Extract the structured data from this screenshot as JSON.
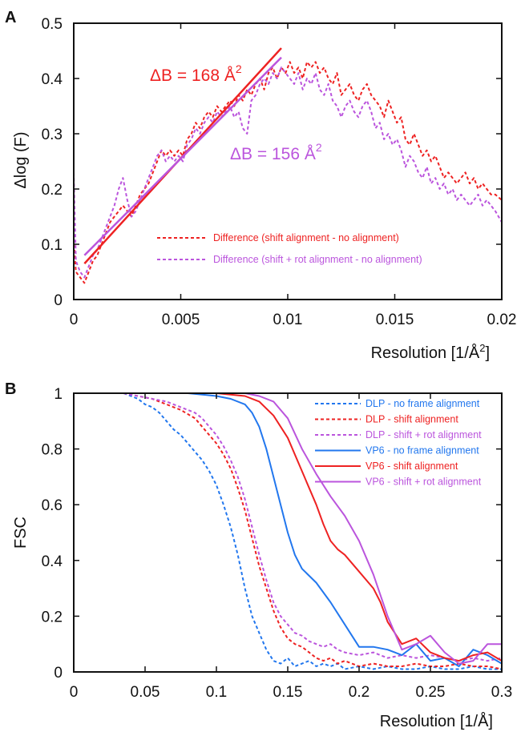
{
  "colors": {
    "red": "#ee2222",
    "purple": "#bb55dd",
    "blue": "#2277ee",
    "axis": "#111111"
  },
  "chart_data": [
    {
      "panel": "A",
      "type": "line",
      "xlabel_main": "Resolution [1/Å",
      "xlabel_sup": "2",
      "xlabel_end": "]",
      "ylabel": "Δlog (F)",
      "xlim": [
        0,
        0.02
      ],
      "ylim": [
        0,
        0.5
      ],
      "xticks": [
        0,
        0.005,
        0.01,
        0.015,
        0.02
      ],
      "xtick_labels": [
        "0",
        "0.005",
        "0.01",
        "0.015",
        "0.02"
      ],
      "yticks": [
        0,
        0.1,
        0.2,
        0.3,
        0.4,
        0.5
      ],
      "ytick_labels": [
        "0",
        "0.1",
        "0.2",
        "0.3",
        "0.4",
        "0.5"
      ],
      "legend_position": "bottom-right",
      "series": [
        {
          "name": "Difference (shift alignment - no alignment)",
          "color_key": "red",
          "dashed": true,
          "x": [
            0,
            0.0001,
            0.0003,
            0.0005,
            0.0007,
            0.0009,
            0.0011,
            0.0013,
            0.0015,
            0.0017,
            0.0019,
            0.0021,
            0.0023,
            0.0025,
            0.0027,
            0.0029,
            0.0031,
            0.0033,
            0.0035,
            0.0037,
            0.0039,
            0.0041,
            0.0043,
            0.0045,
            0.0047,
            0.0049,
            0.0051,
            0.0053,
            0.0055,
            0.0057,
            0.0059,
            0.0061,
            0.0063,
            0.0065,
            0.0067,
            0.0069,
            0.0071,
            0.0073,
            0.0075,
            0.0077,
            0.0079,
            0.0081,
            0.0083,
            0.0085,
            0.0087,
            0.0089,
            0.0091,
            0.0093,
            0.0095,
            0.0097,
            0.0099,
            0.0101,
            0.0103,
            0.0105,
            0.0107,
            0.0109,
            0.0111,
            0.0113,
            0.0115,
            0.0117,
            0.0119,
            0.0121,
            0.0123,
            0.0125,
            0.0127,
            0.0129,
            0.0131,
            0.0133,
            0.0135,
            0.0137,
            0.0139,
            0.0141,
            0.0143,
            0.0145,
            0.0147,
            0.0149,
            0.0151,
            0.0153,
            0.0155,
            0.0157,
            0.0159,
            0.0161,
            0.0163,
            0.0165,
            0.0167,
            0.0169,
            0.0171,
            0.0173,
            0.0175,
            0.0177,
            0.0179,
            0.0181,
            0.0183,
            0.0185,
            0.0187,
            0.0189,
            0.0191,
            0.0193,
            0.0195,
            0.0197,
            0.02
          ],
          "y": [
            0.11,
            0.05,
            0.04,
            0.03,
            0.05,
            0.07,
            0.08,
            0.1,
            0.12,
            0.14,
            0.15,
            0.16,
            0.17,
            0.16,
            0.15,
            0.17,
            0.19,
            0.2,
            0.21,
            0.23,
            0.25,
            0.27,
            0.26,
            0.27,
            0.26,
            0.27,
            0.26,
            0.29,
            0.3,
            0.32,
            0.31,
            0.33,
            0.34,
            0.33,
            0.35,
            0.34,
            0.35,
            0.36,
            0.35,
            0.37,
            0.36,
            0.38,
            0.37,
            0.39,
            0.4,
            0.38,
            0.41,
            0.42,
            0.4,
            0.42,
            0.41,
            0.43,
            0.41,
            0.42,
            0.4,
            0.43,
            0.42,
            0.43,
            0.41,
            0.42,
            0.4,
            0.39,
            0.41,
            0.37,
            0.38,
            0.39,
            0.37,
            0.36,
            0.38,
            0.39,
            0.37,
            0.36,
            0.35,
            0.33,
            0.36,
            0.34,
            0.32,
            0.33,
            0.29,
            0.28,
            0.3,
            0.28,
            0.26,
            0.27,
            0.25,
            0.26,
            0.24,
            0.22,
            0.23,
            0.22,
            0.21,
            0.22,
            0.23,
            0.21,
            0.22,
            0.2,
            0.21,
            0.2,
            0.19,
            0.19,
            0.18
          ]
        },
        {
          "name": "Difference (shift + rot alignment - no alignment)",
          "color_key": "purple",
          "dashed": true,
          "x": [
            0,
            0.0001,
            0.0003,
            0.0005,
            0.0007,
            0.0009,
            0.0011,
            0.0013,
            0.0015,
            0.0017,
            0.0019,
            0.0021,
            0.0023,
            0.0025,
            0.0027,
            0.0029,
            0.0031,
            0.0033,
            0.0035,
            0.0037,
            0.0039,
            0.0041,
            0.0043,
            0.0045,
            0.0047,
            0.0049,
            0.0051,
            0.0053,
            0.0055,
            0.0057,
            0.0059,
            0.0061,
            0.0063,
            0.0065,
            0.0067,
            0.0069,
            0.0071,
            0.0073,
            0.0075,
            0.0077,
            0.0079,
            0.0081,
            0.0083,
            0.0085,
            0.0087,
            0.0089,
            0.0091,
            0.0093,
            0.0095,
            0.0097,
            0.0099,
            0.0101,
            0.0103,
            0.0105,
            0.0107,
            0.0109,
            0.0111,
            0.0113,
            0.0115,
            0.0117,
            0.0119,
            0.0121,
            0.0123,
            0.0125,
            0.0127,
            0.0129,
            0.0131,
            0.0133,
            0.0135,
            0.0137,
            0.0139,
            0.0141,
            0.0143,
            0.0145,
            0.0147,
            0.0149,
            0.0151,
            0.0153,
            0.0155,
            0.0157,
            0.0159,
            0.0161,
            0.0163,
            0.0165,
            0.0167,
            0.0169,
            0.0171,
            0.0173,
            0.0175,
            0.0177,
            0.0179,
            0.0181,
            0.0183,
            0.0185,
            0.0187,
            0.0189,
            0.0191,
            0.0193,
            0.0195,
            0.0197,
            0.02
          ],
          "y": [
            0.23,
            0.07,
            0.05,
            0.04,
            0.06,
            0.08,
            0.09,
            0.11,
            0.13,
            0.15,
            0.17,
            0.2,
            0.22,
            0.18,
            0.15,
            0.16,
            0.18,
            0.2,
            0.22,
            0.24,
            0.26,
            0.27,
            0.25,
            0.26,
            0.25,
            0.26,
            0.25,
            0.28,
            0.29,
            0.31,
            0.3,
            0.32,
            0.33,
            0.32,
            0.34,
            0.33,
            0.34,
            0.35,
            0.33,
            0.34,
            0.31,
            0.3,
            0.36,
            0.37,
            0.39,
            0.4,
            0.39,
            0.41,
            0.4,
            0.42,
            0.41,
            0.4,
            0.39,
            0.41,
            0.38,
            0.4,
            0.39,
            0.41,
            0.38,
            0.37,
            0.39,
            0.36,
            0.35,
            0.33,
            0.35,
            0.36,
            0.34,
            0.33,
            0.35,
            0.36,
            0.34,
            0.31,
            0.32,
            0.29,
            0.3,
            0.28,
            0.29,
            0.27,
            0.24,
            0.26,
            0.25,
            0.23,
            0.22,
            0.24,
            0.21,
            0.22,
            0.2,
            0.21,
            0.19,
            0.2,
            0.18,
            0.19,
            0.18,
            0.17,
            0.18,
            0.19,
            0.17,
            0.18,
            0.17,
            0.16,
            0.14
          ]
        }
      ],
      "fits": [
        {
          "color_key": "red",
          "x": [
            0.0005,
            0.0097
          ],
          "y": [
            0.065,
            0.455
          ],
          "label_main": "ΔB = 168 Å",
          "label_sup": "2"
        },
        {
          "color_key": "purple",
          "x": [
            0.0005,
            0.0097
          ],
          "y": [
            0.08,
            0.438
          ],
          "label_main": "ΔB = 156 Å",
          "label_sup": "2"
        }
      ]
    },
    {
      "panel": "B",
      "type": "line",
      "xlabel": "Resolution [1/Å]",
      "ylabel": "FSC",
      "xlim": [
        0,
        0.3
      ],
      "ylim": [
        0,
        1
      ],
      "xticks": [
        0,
        0.05,
        0.1,
        0.15,
        0.2,
        0.25,
        0.3
      ],
      "xtick_labels": [
        "0",
        "0.05",
        "0.1",
        "0.15",
        "0.2",
        "0.25",
        "0.3"
      ],
      "yticks": [
        0,
        0.2,
        0.4,
        0.6,
        0.8,
        1
      ],
      "ytick_labels": [
        "0",
        "0.2",
        "0.4",
        "0.6",
        "0.8",
        "1"
      ],
      "legend_position": "top-right",
      "series": [
        {
          "name": "DLP - no frame alignment",
          "color_key": "blue",
          "dashed": true,
          "x": [
            0.035,
            0.04,
            0.045,
            0.05,
            0.055,
            0.06,
            0.065,
            0.07,
            0.075,
            0.08,
            0.085,
            0.09,
            0.095,
            0.1,
            0.105,
            0.11,
            0.115,
            0.12,
            0.125,
            0.13,
            0.135,
            0.14,
            0.145,
            0.15,
            0.155,
            0.16,
            0.165,
            0.17,
            0.175,
            0.18,
            0.185,
            0.19,
            0.2,
            0.21,
            0.22,
            0.23,
            0.24,
            0.25,
            0.26,
            0.27,
            0.28,
            0.29,
            0.3
          ],
          "y": [
            1,
            0.99,
            0.98,
            0.96,
            0.95,
            0.93,
            0.9,
            0.87,
            0.85,
            0.82,
            0.79,
            0.76,
            0.72,
            0.67,
            0.6,
            0.52,
            0.42,
            0.3,
            0.2,
            0.14,
            0.08,
            0.04,
            0.03,
            0.05,
            0.02,
            0.03,
            0.04,
            0.02,
            0.03,
            0.02,
            0.03,
            0.01,
            0.02,
            0.01,
            0.02,
            0.01,
            0.01,
            0.02,
            0.01,
            0.01,
            0.02,
            0.01,
            0.01
          ]
        },
        {
          "name": "DLP - shift alignment",
          "color_key": "red",
          "dashed": true,
          "x": [
            0.035,
            0.045,
            0.055,
            0.065,
            0.075,
            0.085,
            0.09,
            0.095,
            0.1,
            0.105,
            0.11,
            0.115,
            0.12,
            0.125,
            0.13,
            0.135,
            0.14,
            0.145,
            0.15,
            0.155,
            0.16,
            0.165,
            0.17,
            0.175,
            0.18,
            0.185,
            0.19,
            0.2,
            0.21,
            0.22,
            0.23,
            0.24,
            0.25,
            0.26,
            0.27,
            0.28,
            0.29,
            0.3
          ],
          "y": [
            1,
            0.99,
            0.98,
            0.96,
            0.94,
            0.91,
            0.88,
            0.85,
            0.82,
            0.78,
            0.73,
            0.66,
            0.58,
            0.48,
            0.38,
            0.3,
            0.22,
            0.16,
            0.12,
            0.1,
            0.09,
            0.07,
            0.05,
            0.04,
            0.05,
            0.03,
            0.04,
            0.02,
            0.03,
            0.02,
            0.02,
            0.03,
            0.02,
            0.02,
            0.03,
            0.02,
            0.02,
            0.01
          ]
        },
        {
          "name": "DLP - shift + rot alignment",
          "color_key": "purple",
          "dashed": true,
          "x": [
            0.035,
            0.045,
            0.055,
            0.065,
            0.075,
            0.085,
            0.09,
            0.095,
            0.1,
            0.105,
            0.11,
            0.115,
            0.12,
            0.125,
            0.13,
            0.135,
            0.14,
            0.145,
            0.15,
            0.155,
            0.16,
            0.165,
            0.17,
            0.175,
            0.18,
            0.185,
            0.19,
            0.2,
            0.21,
            0.22,
            0.23,
            0.24,
            0.25,
            0.26,
            0.27,
            0.28,
            0.29,
            0.3
          ],
          "y": [
            1,
            0.99,
            0.98,
            0.97,
            0.95,
            0.93,
            0.91,
            0.88,
            0.85,
            0.81,
            0.76,
            0.7,
            0.62,
            0.52,
            0.42,
            0.33,
            0.25,
            0.2,
            0.17,
            0.14,
            0.13,
            0.11,
            0.1,
            0.09,
            0.1,
            0.08,
            0.07,
            0.06,
            0.07,
            0.05,
            0.06,
            0.05,
            0.06,
            0.05,
            0.04,
            0.05,
            0.04,
            0.05
          ]
        },
        {
          "name": "VP6 - no frame alignment",
          "color_key": "blue",
          "dashed": false,
          "x": [
            0.04,
            0.06,
            0.08,
            0.1,
            0.11,
            0.12,
            0.125,
            0.13,
            0.135,
            0.14,
            0.145,
            0.15,
            0.155,
            0.16,
            0.17,
            0.18,
            0.19,
            0.2,
            0.21,
            0.22,
            0.225,
            0.23,
            0.24,
            0.25,
            0.26,
            0.27,
            0.28,
            0.29,
            0.3
          ],
          "y": [
            1,
            1,
            1,
            0.99,
            0.98,
            0.96,
            0.93,
            0.88,
            0.8,
            0.7,
            0.6,
            0.5,
            0.42,
            0.37,
            0.32,
            0.25,
            0.17,
            0.09,
            0.09,
            0.08,
            0.07,
            0.06,
            0.1,
            0.04,
            0.05,
            0.02,
            0.08,
            0.06,
            0.03
          ]
        },
        {
          "name": "VP6 - shift alignment",
          "color_key": "red",
          "dashed": false,
          "x": [
            0.04,
            0.06,
            0.08,
            0.1,
            0.12,
            0.13,
            0.14,
            0.15,
            0.16,
            0.17,
            0.175,
            0.18,
            0.185,
            0.19,
            0.2,
            0.21,
            0.215,
            0.22,
            0.23,
            0.24,
            0.25,
            0.26,
            0.27,
            0.28,
            0.29,
            0.3
          ],
          "y": [
            1,
            1,
            1,
            1,
            0.99,
            0.97,
            0.92,
            0.84,
            0.72,
            0.6,
            0.53,
            0.47,
            0.44,
            0.42,
            0.36,
            0.3,
            0.25,
            0.18,
            0.1,
            0.12,
            0.07,
            0.05,
            0.04,
            0.06,
            0.07,
            0.04
          ]
        },
        {
          "name": "VP6 - shift + rot alignment",
          "color_key": "purple",
          "dashed": false,
          "x": [
            0.04,
            0.06,
            0.08,
            0.1,
            0.12,
            0.13,
            0.14,
            0.15,
            0.16,
            0.17,
            0.18,
            0.19,
            0.2,
            0.21,
            0.22,
            0.23,
            0.24,
            0.25,
            0.26,
            0.27,
            0.28,
            0.29,
            0.3
          ],
          "y": [
            1,
            1,
            1,
            1,
            1,
            0.99,
            0.97,
            0.91,
            0.8,
            0.71,
            0.63,
            0.56,
            0.47,
            0.35,
            0.2,
            0.08,
            0.1,
            0.13,
            0.07,
            0.03,
            0.04,
            0.1,
            0.1
          ]
        }
      ]
    }
  ]
}
